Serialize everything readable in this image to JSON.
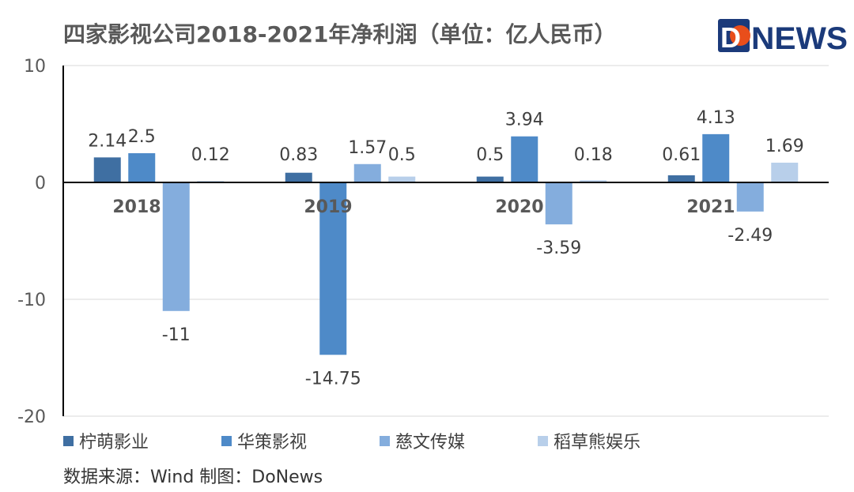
{
  "chart_data": {
    "type": "bar",
    "title": "四家影视公司2018-2021年净利润（单位：亿人民币）",
    "categories": [
      "2018",
      "2019",
      "2020",
      "2021"
    ],
    "series": [
      {
        "name": "柠萌影业",
        "values": [
          2.14,
          0.83,
          0.5,
          0.61
        ],
        "color": "#3F6FA2"
      },
      {
        "name": "华策影视",
        "values": [
          2.5,
          -14.75,
          3.94,
          4.13
        ],
        "color": "#4E8AC8"
      },
      {
        "name": "慈文传媒",
        "values": [
          -11,
          1.57,
          -3.59,
          -2.49
        ],
        "color": "#84ADDD"
      },
      {
        "name": "稻草熊娱乐",
        "values": [
          0.12,
          0.5,
          0.18,
          1.69
        ],
        "color": "#B8CFEA"
      }
    ],
    "data_labels": [
      [
        "2.14",
        "0.83",
        "0.5",
        "0.61"
      ],
      [
        "2.5",
        "-14.75",
        "3.94",
        "4.13"
      ],
      [
        "-11",
        "1.57",
        "-3.59",
        "-2.49"
      ],
      [
        "0.12",
        "0.5",
        "0.18",
        "1.69"
      ]
    ],
    "y_ticks": [
      "10",
      "0",
      "-10",
      "-20"
    ],
    "ylim": [
      -20,
      10
    ],
    "grid": true,
    "legend_position": "bottom"
  },
  "logo": {
    "text_do": "D",
    "text_news": "NEWS"
  },
  "source_text": "数据来源：Wind 制图：DoNews",
  "colors": {
    "text": "#595959",
    "grid": "#D9D9D9",
    "axis": "#000000",
    "logo_navy": "#1B3A7A",
    "logo_red": "#E94E1B"
  }
}
